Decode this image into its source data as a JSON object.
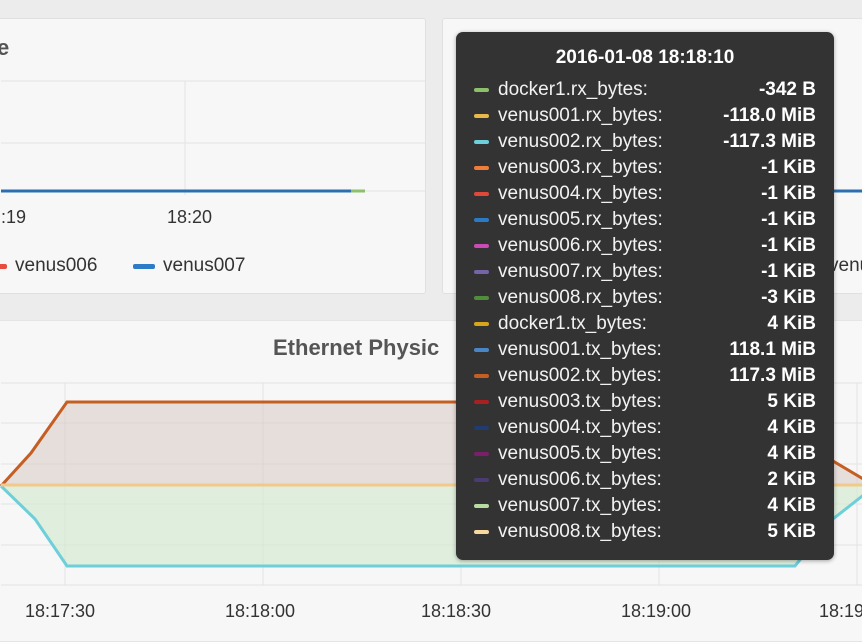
{
  "top_left_panel": {
    "title_fragment": "e",
    "x_ticks": [
      ":19",
      "18:20"
    ],
    "legend": [
      {
        "name": "venus006",
        "color": "#e74c3c"
      },
      {
        "name": "venus007",
        "color": "#2b7bc6"
      }
    ]
  },
  "top_right_panel": {
    "legend_fragment": "venu"
  },
  "bottom_panel": {
    "title": "Ethernet Physic",
    "x_ticks": [
      "18:17:30",
      "18:18:00",
      "18:18:30",
      "18:19:00",
      "18:19"
    ]
  },
  "tooltip": {
    "title": "2016-01-08 18:18:10",
    "rows": [
      {
        "name": "docker1.rx_bytes:",
        "value": "-342 B",
        "color": "#8cc06b"
      },
      {
        "name": "venus001.rx_bytes:",
        "value": "-118.0 MiB",
        "color": "#e8b84a"
      },
      {
        "name": "venus002.rx_bytes:",
        "value": "-117.3 MiB",
        "color": "#6dcfd9"
      },
      {
        "name": "venus003.rx_bytes:",
        "value": "-1 KiB",
        "color": "#ee7c3a"
      },
      {
        "name": "venus004.rx_bytes:",
        "value": "-1 KiB",
        "color": "#e0493a"
      },
      {
        "name": "venus005.rx_bytes:",
        "value": "-1 KiB",
        "color": "#2a7bc6"
      },
      {
        "name": "venus006.rx_bytes:",
        "value": "-1 KiB",
        "color": "#c94bb3"
      },
      {
        "name": "venus007.rx_bytes:",
        "value": "-1 KiB",
        "color": "#7664a8"
      },
      {
        "name": "venus008.rx_bytes:",
        "value": "-3 KiB",
        "color": "#4f8c3b"
      },
      {
        "name": "docker1.tx_bytes:",
        "value": "4 KiB",
        "color": "#d6a51c"
      },
      {
        "name": "venus001.tx_bytes:",
        "value": "118.1 MiB",
        "color": "#4a86c5"
      },
      {
        "name": "venus002.tx_bytes:",
        "value": "117.3 MiB",
        "color": "#c45e23"
      },
      {
        "name": "venus003.tx_bytes:",
        "value": "5 KiB",
        "color": "#a82020"
      },
      {
        "name": "venus004.tx_bytes:",
        "value": "4 KiB",
        "color": "#1f3c73"
      },
      {
        "name": "venus005.tx_bytes:",
        "value": "4 KiB",
        "color": "#7b1f6a"
      },
      {
        "name": "venus006.tx_bytes:",
        "value": "2 KiB",
        "color": "#4b3b73"
      },
      {
        "name": "venus007.tx_bytes:",
        "value": "4 KiB",
        "color": "#b6dba3"
      },
      {
        "name": "venus008.tx_bytes:",
        "value": "5 KiB",
        "color": "#f7d9a0"
      }
    ]
  }
}
